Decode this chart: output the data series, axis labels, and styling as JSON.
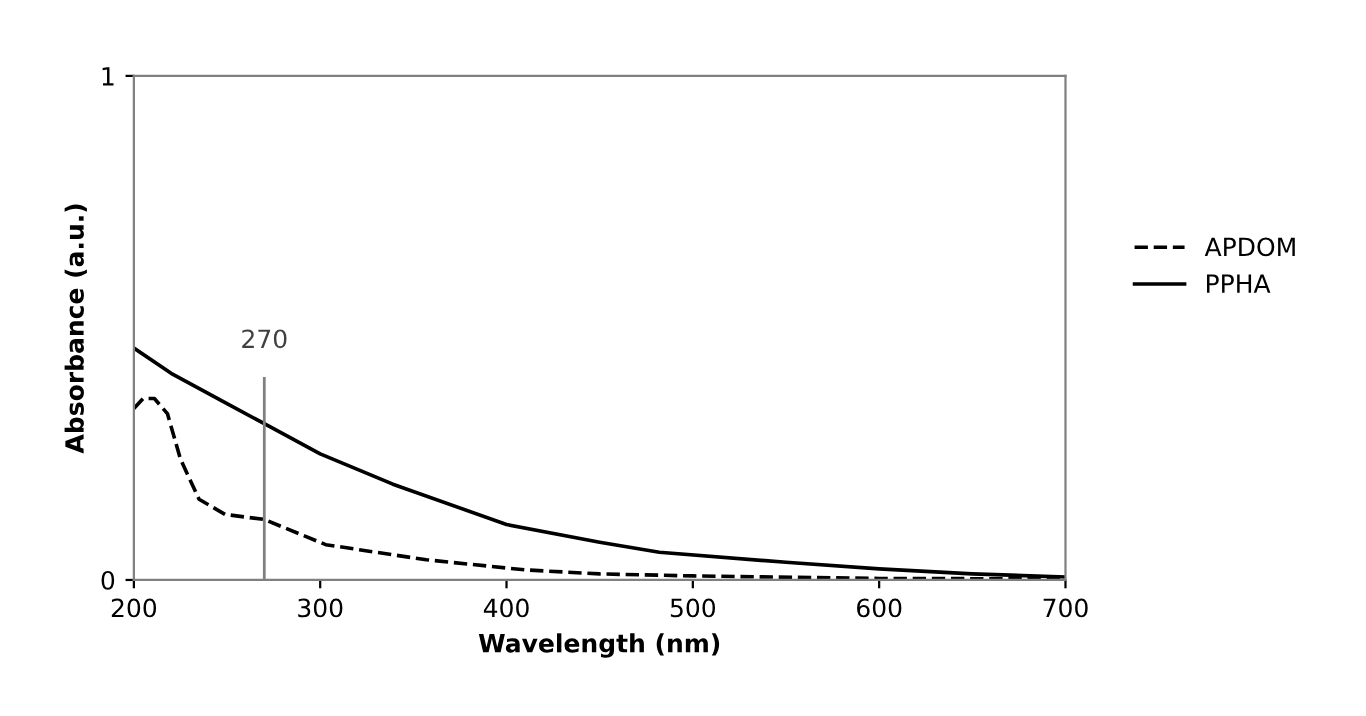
{
  "chart_data": {
    "type": "line",
    "xlabel": "Wavelength (nm)",
    "ylabel": "Absorbance (a.u.)",
    "xlim": [
      200,
      700
    ],
    "ylim": [
      0,
      1
    ],
    "xticks": [
      200,
      300,
      400,
      500,
      600,
      700
    ],
    "yticks": [
      0,
      1
    ],
    "legend": "right",
    "grid": false,
    "marker": "none",
    "series": [
      {
        "name": "APDOM",
        "color": "#000000",
        "line_style": "dashed",
        "x": [
          200,
          205,
          211,
          218,
          225,
          235,
          249,
          270,
          303,
          357,
          410,
          450,
          500,
          600,
          700
        ],
        "values": [
          0.34,
          0.36,
          0.36,
          0.33,
          0.24,
          0.16,
          0.13,
          0.12,
          0.07,
          0.04,
          0.02,
          0.012,
          0.008,
          0.003,
          0.002
        ]
      },
      {
        "name": "PPHA",
        "color": "#000000",
        "line_style": "solid",
        "x": [
          200,
          220,
          250,
          270,
          300,
          339,
          400,
          450,
          482,
          550,
          600,
          650,
          700
        ],
        "values": [
          0.46,
          0.41,
          0.35,
          0.31,
          0.25,
          0.19,
          0.11,
          0.075,
          0.055,
          0.035,
          0.022,
          0.012,
          0.006
        ]
      }
    ],
    "ref_lines": [
      {
        "axis": "x",
        "value": 270,
        "label": "270",
        "color": "#808080"
      }
    ]
  }
}
